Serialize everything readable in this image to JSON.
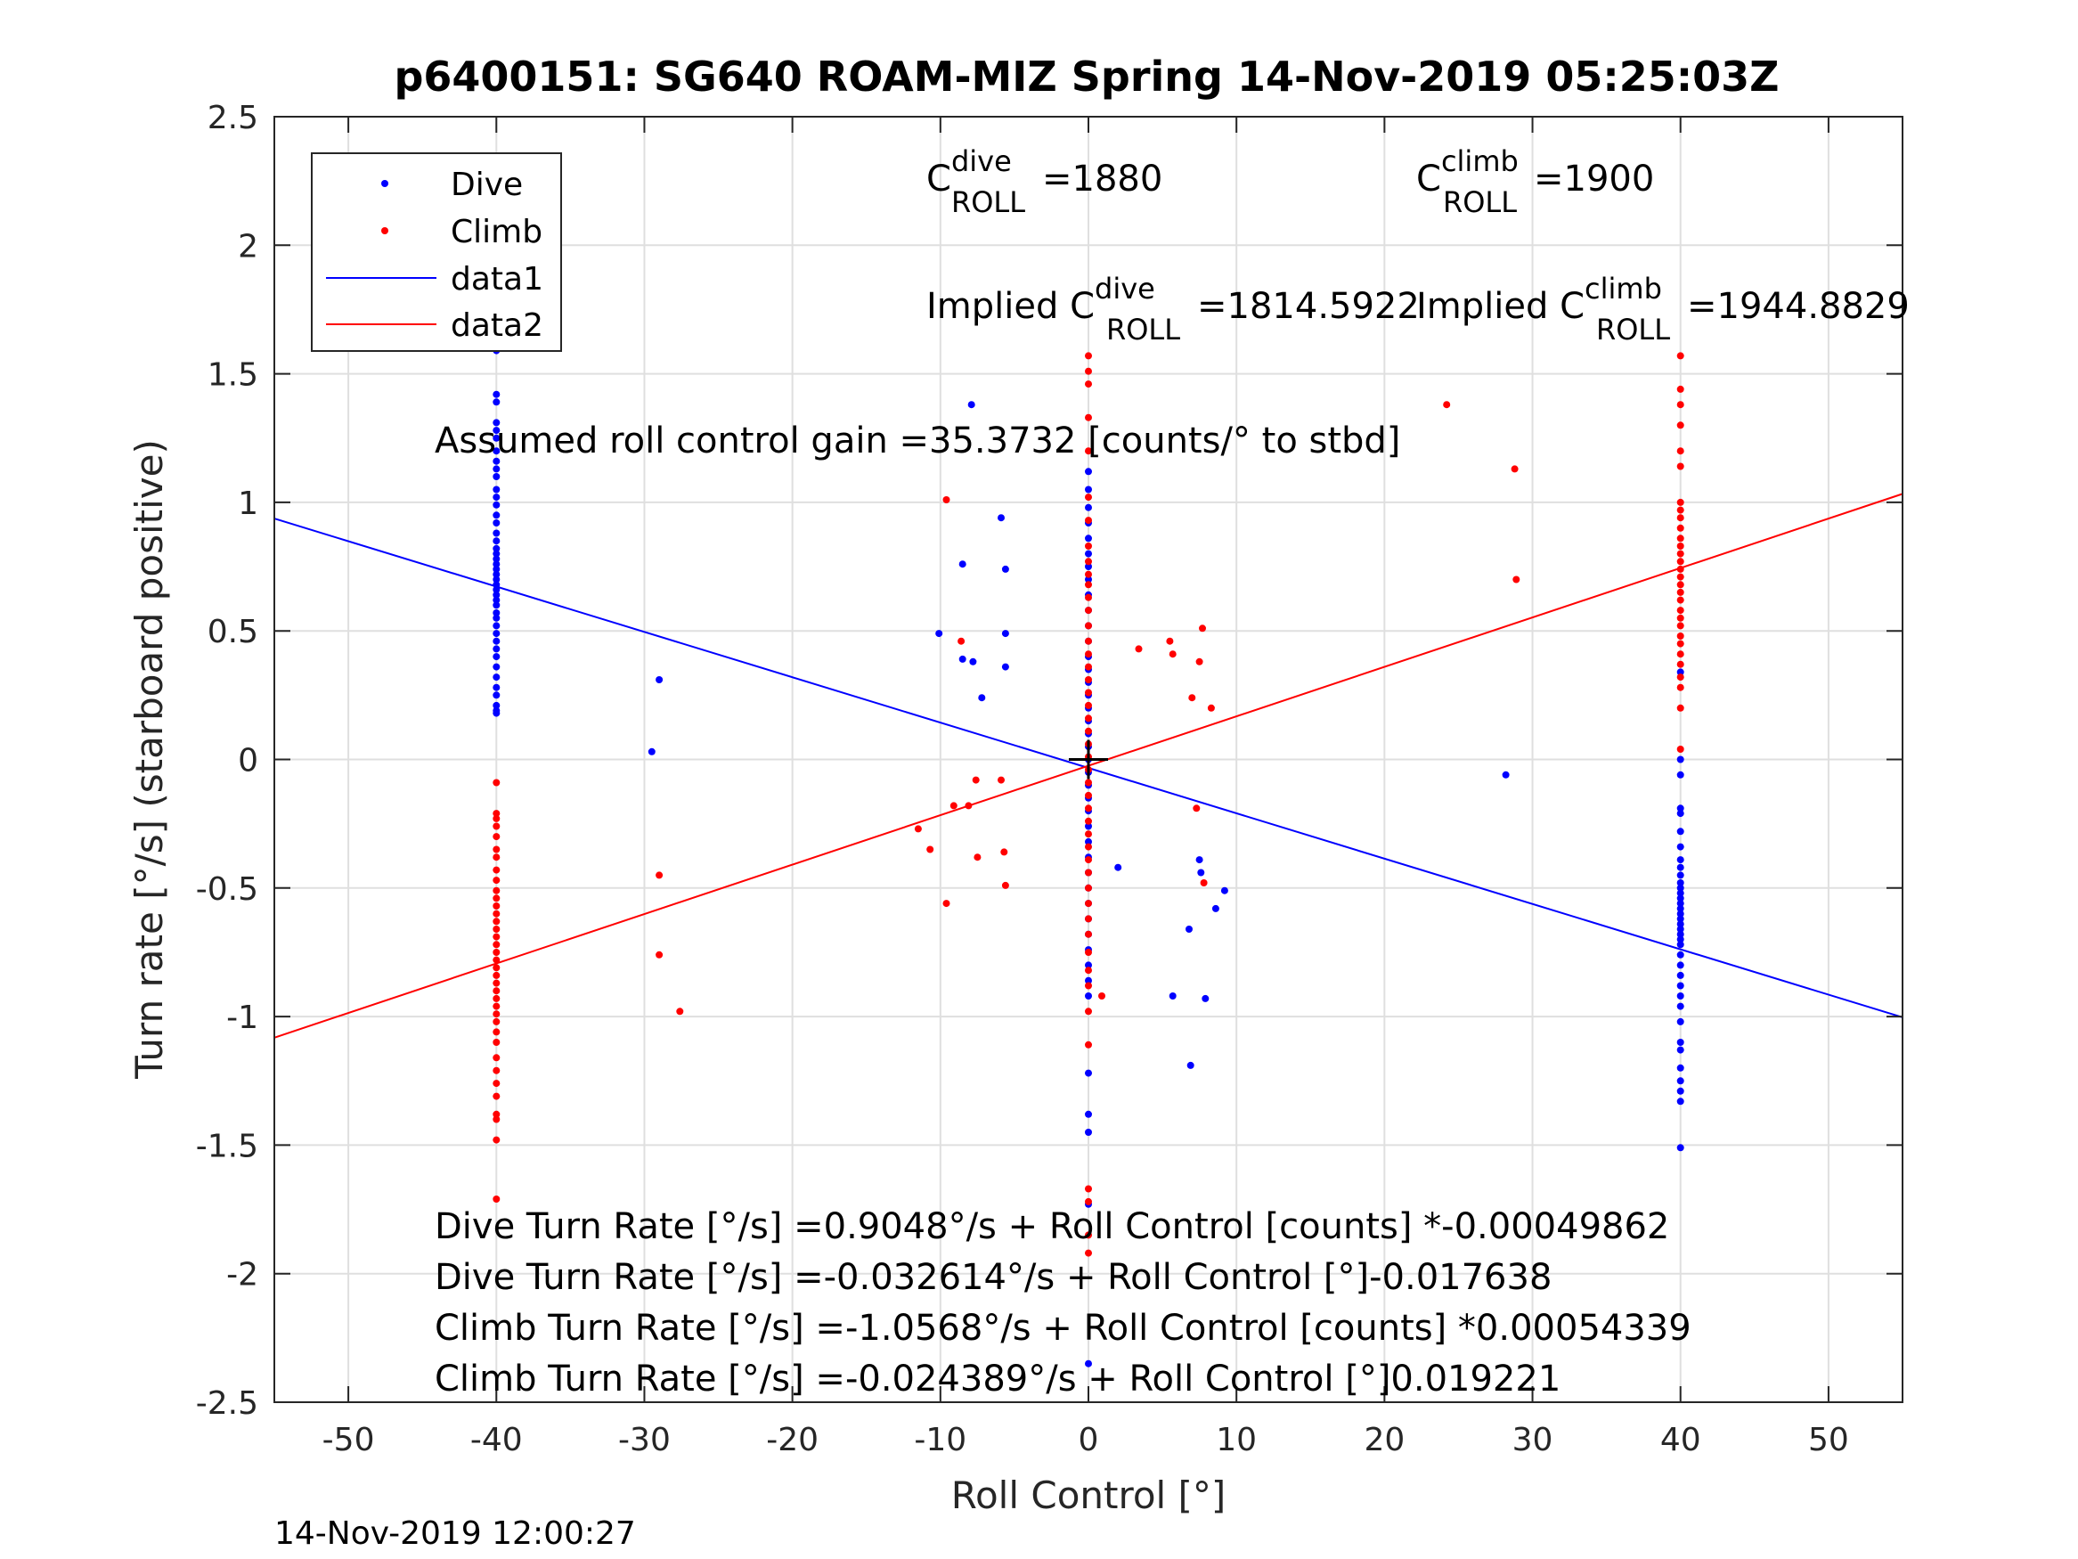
{
  "chart_data": {
    "type": "scatter",
    "title": "p6400151: SG640 ROAM-MIZ Spring 14-Nov-2019 05:25:03Z",
    "xlabel": "Roll Control [°]",
    "ylabel": "Turn rate [°/s] (starboard positive)",
    "xlim": [
      -55,
      55
    ],
    "ylim": [
      -2.5,
      2.5
    ],
    "xticks": [
      "-50",
      "-40",
      "-30",
      "-20",
      "-10",
      "0",
      "10",
      "20",
      "30",
      "40",
      "50"
    ],
    "yticks": [
      "-2.5",
      "-2",
      "-1.5",
      "-1",
      "-0.5",
      "0",
      "0.5",
      "1",
      "1.5",
      "2",
      "2.5"
    ],
    "grid": true,
    "legend_position": "top-left",
    "timestamp": "14-Nov-2019 12:00:27",
    "series": [
      {
        "name": "Dive",
        "type": "scatter",
        "color": "#0000ff",
        "points": [
          [
            -40,
            1.59
          ],
          [
            -40,
            1.42
          ],
          [
            -40,
            1.39
          ],
          [
            -40,
            1.31
          ],
          [
            -40,
            1.28
          ],
          [
            -40,
            1.25
          ],
          [
            -40,
            1.2
          ],
          [
            -40,
            1.16
          ],
          [
            -40,
            1.13
          ],
          [
            -40,
            1.1
          ],
          [
            -40,
            1.05
          ],
          [
            -40,
            1.02
          ],
          [
            -40,
            0.99
          ],
          [
            -40,
            0.95
          ],
          [
            -40,
            0.92
          ],
          [
            -40,
            0.88
          ],
          [
            -40,
            0.85
          ],
          [
            -40,
            0.82
          ],
          [
            -40,
            0.8
          ],
          [
            -40,
            0.78
          ],
          [
            -40,
            0.76
          ],
          [
            -40,
            0.74
          ],
          [
            -40,
            0.72
          ],
          [
            -40,
            0.7
          ],
          [
            -40,
            0.68
          ],
          [
            -40,
            0.66
          ],
          [
            -40,
            0.64
          ],
          [
            -40,
            0.62
          ],
          [
            -40,
            0.6
          ],
          [
            -40,
            0.57
          ],
          [
            -40,
            0.55
          ],
          [
            -40,
            0.52
          ],
          [
            -40,
            0.49
          ],
          [
            -40,
            0.46
          ],
          [
            -40,
            0.43
          ],
          [
            -40,
            0.4
          ],
          [
            -40,
            0.36
          ],
          [
            -40,
            0.32
          ],
          [
            -40,
            0.28
          ],
          [
            -40,
            0.25
          ],
          [
            -40,
            0.21
          ],
          [
            -40,
            0.19
          ],
          [
            -40,
            0.18
          ],
          [
            -7.9,
            1.38
          ],
          [
            -5.9,
            0.94
          ],
          [
            -8.5,
            0.76
          ],
          [
            -5.6,
            0.74
          ],
          [
            -5.6,
            0.49
          ],
          [
            -10.1,
            0.49
          ],
          [
            -8.5,
            0.39
          ],
          [
            -7.8,
            0.38
          ],
          [
            -5.6,
            0.36
          ],
          [
            -7.2,
            0.24
          ],
          [
            -29,
            0.31
          ],
          [
            -29.5,
            0.03
          ],
          [
            28.2,
            -0.06
          ],
          [
            2,
            -0.42
          ],
          [
            7.5,
            -0.39
          ],
          [
            7.6,
            -0.44
          ],
          [
            9.2,
            -0.51
          ],
          [
            8.6,
            -0.58
          ],
          [
            6.8,
            -0.66
          ],
          [
            5.7,
            -0.92
          ],
          [
            7.9,
            -0.93
          ],
          [
            6.9,
            -1.19
          ],
          [
            0,
            1.12
          ],
          [
            0,
            1.05
          ],
          [
            0,
            0.98
          ],
          [
            0,
            0.92
          ],
          [
            0,
            0.86
          ],
          [
            0,
            0.8
          ],
          [
            0,
            0.75
          ],
          [
            0,
            0.7
          ],
          [
            0,
            0.64
          ],
          [
            0,
            0.58
          ],
          [
            0,
            0.52
          ],
          [
            0,
            0.46
          ],
          [
            0,
            0.4
          ],
          [
            0,
            0.35
          ],
          [
            0,
            0.3
          ],
          [
            0,
            0.25
          ],
          [
            0,
            0.2
          ],
          [
            0,
            0.15
          ],
          [
            0,
            0.1
          ],
          [
            0,
            0.05
          ],
          [
            0,
            0.0
          ],
          [
            0,
            -0.05
          ],
          [
            0,
            -0.1
          ],
          [
            0,
            -0.15
          ],
          [
            0,
            -0.2
          ],
          [
            0,
            -0.26
          ],
          [
            0,
            -0.32
          ],
          [
            0,
            -0.38
          ],
          [
            0,
            -0.44
          ],
          [
            0,
            -0.5
          ],
          [
            0,
            -0.56
          ],
          [
            0,
            -0.62
          ],
          [
            0,
            -0.68
          ],
          [
            0,
            -0.74
          ],
          [
            0,
            -0.8
          ],
          [
            0,
            -0.86
          ],
          [
            0,
            -0.92
          ],
          [
            0,
            -1.22
          ],
          [
            0,
            -1.38
          ],
          [
            0,
            -1.45
          ],
          [
            0,
            -1.73
          ],
          [
            0,
            -2.35
          ],
          [
            40,
            0.0
          ],
          [
            40,
            0.34
          ],
          [
            40,
            -0.06
          ],
          [
            40,
            -0.19
          ],
          [
            40,
            -0.21
          ],
          [
            40,
            -0.28
          ],
          [
            40,
            -0.34
          ],
          [
            40,
            -0.39
          ],
          [
            40,
            -0.42
          ],
          [
            40,
            -0.45
          ],
          [
            40,
            -0.48
          ],
          [
            40,
            -0.5
          ],
          [
            40,
            -0.52
          ],
          [
            40,
            -0.54
          ],
          [
            40,
            -0.56
          ],
          [
            40,
            -0.58
          ],
          [
            40,
            -0.6
          ],
          [
            40,
            -0.62
          ],
          [
            40,
            -0.64
          ],
          [
            40,
            -0.66
          ],
          [
            40,
            -0.68
          ],
          [
            40,
            -0.7
          ],
          [
            40,
            -0.72
          ],
          [
            40,
            -0.76
          ],
          [
            40,
            -0.8
          ],
          [
            40,
            -0.84
          ],
          [
            40,
            -0.88
          ],
          [
            40,
            -0.92
          ],
          [
            40,
            -0.96
          ],
          [
            40,
            -1.02
          ],
          [
            40,
            -1.1
          ],
          [
            40,
            -1.13
          ],
          [
            40,
            -1.2
          ],
          [
            40,
            -1.25
          ],
          [
            40,
            -1.29
          ],
          [
            40,
            -1.33
          ],
          [
            40,
            -1.51
          ]
        ]
      },
      {
        "name": "Climb",
        "type": "scatter",
        "color": "#ff0000",
        "points": [
          [
            -40,
            -0.09
          ],
          [
            -40,
            -0.21
          ],
          [
            -40,
            -0.23
          ],
          [
            -40,
            -0.26
          ],
          [
            -40,
            -0.3
          ],
          [
            -40,
            -0.35
          ],
          [
            -40,
            -0.38
          ],
          [
            -40,
            -0.43
          ],
          [
            -40,
            -0.47
          ],
          [
            -40,
            -0.51
          ],
          [
            -40,
            -0.54
          ],
          [
            -40,
            -0.57
          ],
          [
            -40,
            -0.6
          ],
          [
            -40,
            -0.63
          ],
          [
            -40,
            -0.66
          ],
          [
            -40,
            -0.69
          ],
          [
            -40,
            -0.72
          ],
          [
            -40,
            -0.75
          ],
          [
            -40,
            -0.78
          ],
          [
            -40,
            -0.81
          ],
          [
            -40,
            -0.84
          ],
          [
            -40,
            -0.87
          ],
          [
            -40,
            -0.9
          ],
          [
            -40,
            -0.93
          ],
          [
            -40,
            -0.96
          ],
          [
            -40,
            -0.99
          ],
          [
            -40,
            -1.02
          ],
          [
            -40,
            -1.06
          ],
          [
            -40,
            -1.1
          ],
          [
            -40,
            -1.16
          ],
          [
            -40,
            -1.21
          ],
          [
            -40,
            -1.26
          ],
          [
            -40,
            -1.31
          ],
          [
            -40,
            -1.38
          ],
          [
            -40,
            -1.4
          ],
          [
            -40,
            -1.48
          ],
          [
            -40,
            -1.71
          ],
          [
            -29,
            -0.45
          ],
          [
            -29,
            -0.76
          ],
          [
            -27.6,
            -0.98
          ],
          [
            -9.6,
            1.01
          ],
          [
            -8.6,
            0.46
          ],
          [
            -9.1,
            -0.18
          ],
          [
            -7.6,
            -0.08
          ],
          [
            -5.9,
            -0.08
          ],
          [
            -8.1,
            -0.18
          ],
          [
            -11.5,
            -0.27
          ],
          [
            -10.7,
            -0.35
          ],
          [
            -7.5,
            -0.38
          ],
          [
            -5.7,
            -0.36
          ],
          [
            -5.6,
            -0.49
          ],
          [
            -9.6,
            -0.56
          ],
          [
            3.4,
            0.43
          ],
          [
            5.5,
            0.46
          ],
          [
            5.7,
            0.41
          ],
          [
            7.7,
            0.51
          ],
          [
            7.5,
            0.38
          ],
          [
            7,
            0.24
          ],
          [
            8.3,
            0.2
          ],
          [
            7.3,
            -0.19
          ],
          [
            7.8,
            -0.48
          ],
          [
            0.9,
            -0.92
          ],
          [
            24.2,
            1.38
          ],
          [
            28.8,
            1.13
          ],
          [
            28.9,
            0.7
          ],
          [
            0,
            1.57
          ],
          [
            0,
            1.51
          ],
          [
            0,
            1.46
          ],
          [
            0,
            1.33
          ],
          [
            0,
            1.2
          ],
          [
            0,
            1.02
          ],
          [
            0,
            0.93
          ],
          [
            0,
            0.83
          ],
          [
            0,
            0.77
          ],
          [
            0,
            0.72
          ],
          [
            0,
            0.68
          ],
          [
            0,
            0.63
          ],
          [
            0,
            0.58
          ],
          [
            0,
            0.52
          ],
          [
            0,
            0.46
          ],
          [
            0,
            0.41
          ],
          [
            0,
            0.36
          ],
          [
            0,
            0.31
          ],
          [
            0,
            0.26
          ],
          [
            0,
            0.21
          ],
          [
            0,
            0.16
          ],
          [
            0,
            0.11
          ],
          [
            0,
            0.06
          ],
          [
            0,
            0.01
          ],
          [
            0,
            -0.04
          ],
          [
            0,
            -0.09
          ],
          [
            0,
            -0.14
          ],
          [
            0,
            -0.19
          ],
          [
            0,
            -0.24
          ],
          [
            0,
            -0.29
          ],
          [
            0,
            -0.34
          ],
          [
            0,
            -0.39
          ],
          [
            0,
            -0.44
          ],
          [
            0,
            -0.5
          ],
          [
            0,
            -0.56
          ],
          [
            0,
            -0.62
          ],
          [
            0,
            -0.68
          ],
          [
            0,
            -0.75
          ],
          [
            0,
            -0.82
          ],
          [
            0,
            -0.88
          ],
          [
            0,
            -0.98
          ],
          [
            0,
            -1.11
          ],
          [
            0,
            -1.67
          ],
          [
            0,
            -1.72
          ],
          [
            0,
            -1.85
          ],
          [
            0,
            -1.92
          ],
          [
            40,
            1.57
          ],
          [
            40,
            1.44
          ],
          [
            40,
            1.38
          ],
          [
            40,
            1.3
          ],
          [
            40,
            1.2
          ],
          [
            40,
            1.14
          ],
          [
            40,
            1.0
          ],
          [
            40,
            0.97
          ],
          [
            40,
            0.94
          ],
          [
            40,
            0.9
          ],
          [
            40,
            0.86
          ],
          [
            40,
            0.83
          ],
          [
            40,
            0.8
          ],
          [
            40,
            0.77
          ],
          [
            40,
            0.74
          ],
          [
            40,
            0.71
          ],
          [
            40,
            0.68
          ],
          [
            40,
            0.65
          ],
          [
            40,
            0.62
          ],
          [
            40,
            0.58
          ],
          [
            40,
            0.55
          ],
          [
            40,
            0.52
          ],
          [
            40,
            0.48
          ],
          [
            40,
            0.45
          ],
          [
            40,
            0.41
          ],
          [
            40,
            0.37
          ],
          [
            40,
            0.32
          ],
          [
            40,
            0.28
          ],
          [
            40,
            0.2
          ],
          [
            40,
            0.04
          ]
        ]
      },
      {
        "name": "data1",
        "type": "line",
        "color": "#0000ff",
        "points": [
          [
            -55,
            0.937
          ],
          [
            55,
            -1.003
          ]
        ]
      },
      {
        "name": "data2",
        "type": "line",
        "color": "#ff0000",
        "points": [
          [
            -55,
            -1.082
          ],
          [
            55,
            1.033
          ]
        ]
      }
    ],
    "marker": {
      "x": 0,
      "y": 0,
      "symbol": "+"
    },
    "annotations": {
      "c_dive_prefix": "C",
      "c_dive_sup": "dive",
      "c_dive_sub": "ROLL",
      "c_dive_value": "=1880",
      "c_climb_prefix": "C",
      "c_climb_sup": "climb",
      "c_climb_sub": "ROLL",
      "c_climb_value": "=1900",
      "implied_dive_prefix": "Implied C",
      "implied_dive_sup": "dive",
      "implied_dive_sub": "ROLL",
      "implied_dive_value": "=1814.5922",
      "implied_climb_prefix": "Implied C",
      "implied_climb_sup": "climb",
      "implied_climb_sub": "ROLL",
      "implied_climb_value": "=1944.8829",
      "gain": "Assumed roll control gain =35.3732 [counts/° to stbd]",
      "eq1": "Dive Turn Rate [°/s] =0.9048°/s + Roll Control [counts] *-0.00049862",
      "eq2": "Dive Turn Rate [°/s] =-0.032614°/s + Roll Control [°]-0.017638",
      "eq3": "Climb Turn Rate [°/s] =-1.0568°/s + Roll Control [counts] *0.00054339",
      "eq4": "Climb Turn Rate [°/s] =-0.024389°/s + Roll Control [°]0.019221"
    }
  }
}
